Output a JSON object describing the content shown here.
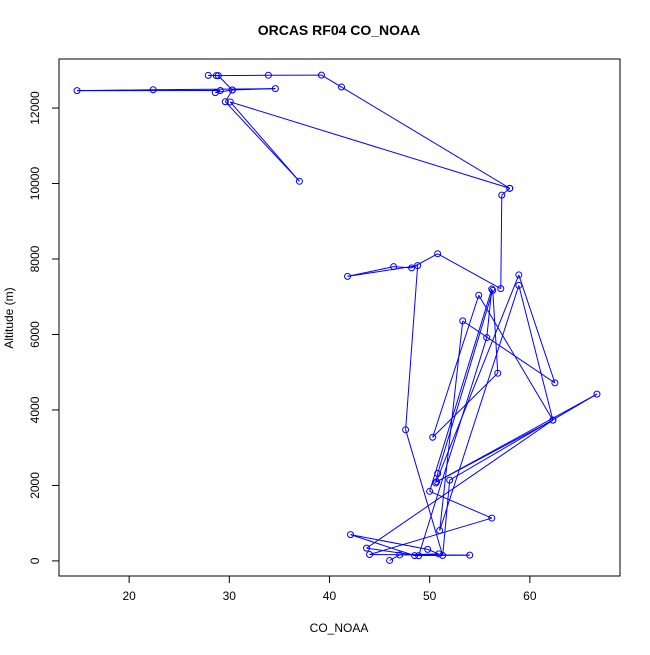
{
  "chart_data": {
    "type": "line",
    "title": "ORCAS RF04 CO_NOAA",
    "xlabel": "CO_NOAA",
    "ylabel": "Altitude (m)",
    "xlim": [
      13,
      69
    ],
    "ylim": [
      -400,
      13300
    ],
    "xticks": [
      20,
      30,
      40,
      50,
      60
    ],
    "yticks": [
      0,
      2000,
      4000,
      6000,
      8000,
      10000,
      12000
    ],
    "grid": false,
    "legend": "none",
    "series": [
      {
        "color": "#0000ff",
        "marker": "open-circle",
        "points": [
          [
            46.0,
            12
          ],
          [
            47.0,
            158
          ],
          [
            50.9,
            185
          ],
          [
            49.8,
            306
          ],
          [
            42.1,
            697
          ],
          [
            48.5,
            140
          ],
          [
            54.0,
            153
          ],
          [
            44.0,
            169
          ],
          [
            56.2,
            1135
          ],
          [
            50.0,
            1844
          ],
          [
            56.2,
            7204
          ],
          [
            55.7,
            5918
          ],
          [
            48.9,
            137
          ],
          [
            43.7,
            338
          ],
          [
            62.3,
            3730
          ],
          [
            58.9,
            7300
          ],
          [
            51.0,
            805
          ],
          [
            53.3,
            6360
          ],
          [
            62.5,
            4717
          ],
          [
            58.9,
            7578
          ],
          [
            50.6,
            2063
          ],
          [
            50.8,
            2315
          ],
          [
            56.3,
            7168
          ],
          [
            56.8,
            4974
          ],
          [
            50.3,
            3276
          ],
          [
            54.9,
            7039
          ],
          [
            62.3,
            3730
          ],
          [
            50.7,
            2097
          ],
          [
            66.7,
            4420
          ],
          [
            52.0,
            2141
          ],
          [
            51.3,
            144
          ],
          [
            47.6,
            3474
          ],
          [
            48.8,
            7825
          ],
          [
            41.8,
            7540
          ],
          [
            46.4,
            7797
          ],
          [
            48.2,
            7765
          ],
          [
            50.8,
            8138
          ],
          [
            57.1,
            7215
          ],
          [
            57.2,
            9693
          ],
          [
            58.0,
            9873
          ],
          [
            30.1,
            12162
          ],
          [
            37.0,
            10059
          ],
          [
            29.6,
            12168
          ],
          [
            30.3,
            12480
          ],
          [
            34.6,
            12514
          ],
          [
            22.4,
            12485
          ],
          [
            14.8,
            12461
          ],
          [
            29.1,
            12464
          ],
          [
            28.6,
            12409
          ],
          [
            30.3,
            12478
          ],
          [
            28.9,
            12859
          ],
          [
            27.9,
            12865
          ],
          [
            28.7,
            12858
          ],
          [
            33.9,
            12871
          ],
          [
            39.2,
            12873
          ],
          [
            41.2,
            12557
          ],
          [
            58.0,
            9873
          ]
        ]
      }
    ]
  }
}
